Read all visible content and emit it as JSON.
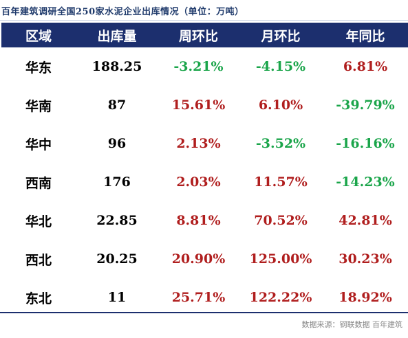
{
  "title": "百年建筑调研全国250家水泥企业出库情况（单位：万吨）",
  "headers": [
    "区域",
    "出库量",
    "周环比",
    "月环比",
    "年同比"
  ],
  "rows": [
    {
      "region": "华东",
      "volume": "188.25",
      "wow": "-3.21%",
      "mom": "-4.15%",
      "yoy": "6.81%"
    },
    {
      "region": "华南",
      "volume": "87",
      "wow": "15.61%",
      "mom": "6.10%",
      "yoy": "-39.79%"
    },
    {
      "region": "华中",
      "volume": "96",
      "wow": "2.13%",
      "mom": "-3.52%",
      "yoy": "-16.16%"
    },
    {
      "region": "西南",
      "volume": "176",
      "wow": "2.03%",
      "mom": "11.57%",
      "yoy": "-14.23%"
    },
    {
      "region": "华北",
      "volume": "22.85",
      "wow": "8.81%",
      "mom": "70.52%",
      "yoy": "42.81%"
    },
    {
      "region": "西北",
      "volume": "20.25",
      "wow": "20.90%",
      "mom": "125.00%",
      "yoy": "30.23%"
    },
    {
      "region": "东北",
      "volume": "11",
      "wow": "25.71%",
      "mom": "122.22%",
      "yoy": "18.92%"
    }
  ],
  "colors": {
    "header_bg": "#1c2f6e",
    "positive": "#b01e1e",
    "negative": "#1aa54a",
    "title": "#1f3a6b"
  },
  "source": "数据来源：钢联数据  百年建筑"
}
